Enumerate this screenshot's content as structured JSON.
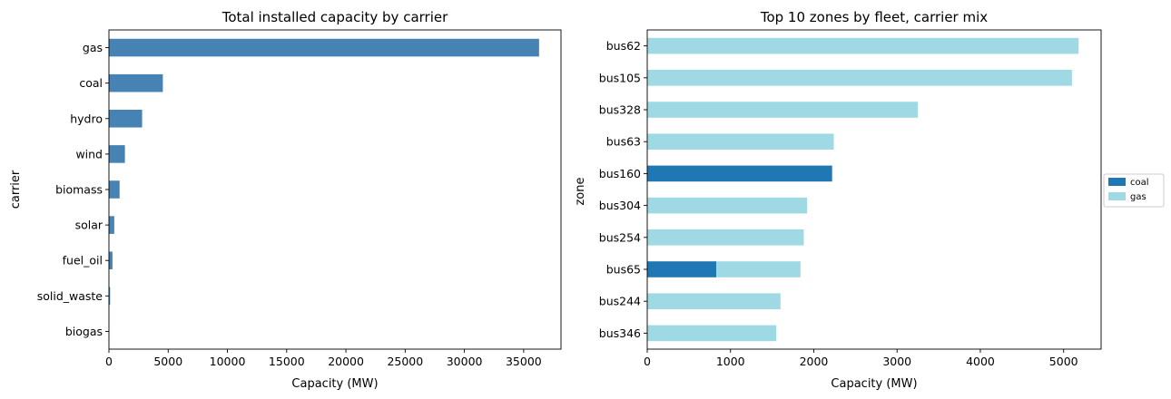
{
  "chart_data": [
    {
      "type": "bar",
      "orientation": "horizontal",
      "title": "Total installed capacity by carrier",
      "xlabel": "Capacity (MW)",
      "ylabel": "carrier",
      "categories": [
        "gas",
        "coal",
        "hydro",
        "wind",
        "biomass",
        "solar",
        "fuel_oil",
        "solid_waste",
        "biogas"
      ],
      "values": [
        36300,
        4550,
        2800,
        1350,
        900,
        450,
        300,
        100,
        20
      ],
      "xlim": [
        0,
        38150
      ],
      "xticks": [
        0,
        5000,
        10000,
        15000,
        20000,
        25000,
        30000,
        35000
      ],
      "color": "#4682b4",
      "grid": false
    },
    {
      "type": "bar",
      "orientation": "horizontal",
      "stacked": true,
      "title": "Top 10 zones by fleet, carrier mix",
      "xlabel": "Capacity (MW)",
      "ylabel": "zone",
      "categories": [
        "bus62",
        "bus105",
        "bus328",
        "bus63",
        "bus160",
        "bus304",
        "bus254",
        "bus65",
        "bus244",
        "bus346"
      ],
      "series": [
        {
          "name": "coal",
          "color": "#1f77b4",
          "values": [
            0,
            0,
            0,
            0,
            2220,
            0,
            0,
            830,
            0,
            0
          ]
        },
        {
          "name": "gas",
          "color": "#9fd9e4",
          "values": [
            5180,
            5100,
            3250,
            2240,
            0,
            1920,
            1880,
            1010,
            1600,
            1550
          ]
        }
      ],
      "xlim": [
        0,
        5450
      ],
      "xticks": [
        0,
        1000,
        2000,
        3000,
        4000,
        5000
      ],
      "legend": "center-right outside",
      "grid": false
    }
  ]
}
